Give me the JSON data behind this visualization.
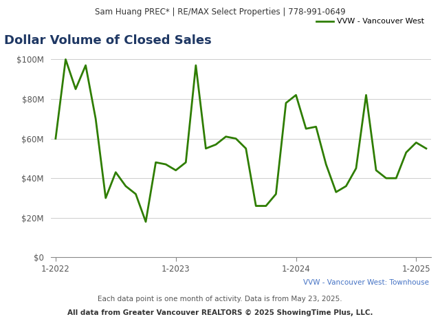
{
  "title_header": "Sam Huang PREC* | RE/MAX Select Properties | 778-991-0649",
  "title": "Dollar Volume of Closed Sales",
  "legend_label": "VVW - Vancouver West",
  "line_color": "#2e7d00",
  "line_width": 2.0,
  "footer_label": "VVW - Vancouver West: Townhouse",
  "footer_note": "Each data point is one month of activity. Data is from May 23, 2025.",
  "footer_source": "All data from Greater Vancouver REALTORS © 2025 ShowingTime Plus, LLC.",
  "background_color": "#ffffff",
  "header_bg_color": "#eeeeee",
  "ylim": [
    0,
    110000000
  ],
  "yticks": [
    0,
    20000000,
    40000000,
    60000000,
    80000000,
    100000000
  ],
  "values": [
    60000000,
    100000000,
    85000000,
    97000000,
    70000000,
    30000000,
    43000000,
    36000000,
    32000000,
    18000000,
    48000000,
    47000000,
    44000000,
    48000000,
    97000000,
    55000000,
    57000000,
    61000000,
    60000000,
    55000000,
    26000000,
    26000000,
    32000000,
    78000000,
    82000000,
    65000000,
    66000000,
    47000000,
    33000000,
    36000000,
    45000000,
    82000000,
    44000000,
    40000000,
    40000000,
    53000000,
    58000000,
    55000000
  ],
  "xtick_positions": [
    0,
    12,
    24,
    36
  ],
  "xtick_labels": [
    "1-2022",
    "1-2023",
    "1-2024",
    "1-2025"
  ],
  "title_fontsize": 13,
  "axis_label_fontsize": 8.5,
  "header_fontsize": 8.5,
  "footer_fontsize": 7.5,
  "grid_color": "#cccccc",
  "title_color": "#1f3864",
  "footer_label_color": "#4472c4",
  "tick_label_color": "#555555"
}
